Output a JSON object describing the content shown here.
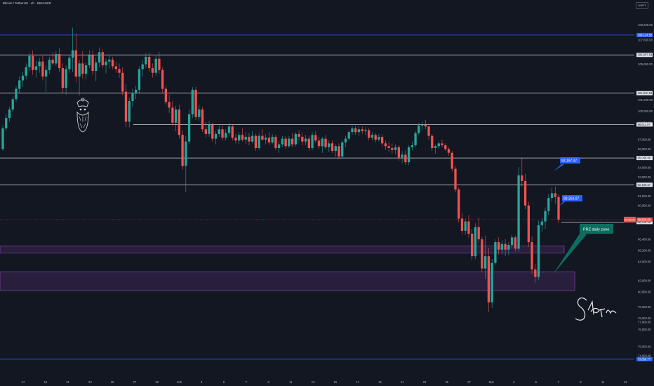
{
  "header": {
    "symbol_title": "Bitcoin / TetherUS · 4h · BINANCE",
    "currency_button": "USDT"
  },
  "colors": {
    "background": "#131722",
    "up": "#26a69a",
    "down": "#ef5350",
    "blue_line": "#2962ff",
    "white_line": "#d1d4dc",
    "zone": "#7b3fa0",
    "callout_blue": "#2962ff",
    "callout_teal": "#0c6e5f"
  },
  "chart_data": {
    "type": "candlestick",
    "title": "Bitcoin / TetherUS · 4h · BINANCE",
    "timeframe": "4h",
    "y_range": [
      72000,
      110800
    ],
    "x_tick_labels": [
      "17",
      "19",
      "21",
      "23",
      "25",
      "27",
      "29",
      "Feb",
      "3",
      "5",
      "7",
      "9",
      "11",
      "13",
      "15",
      "17",
      "19",
      "21",
      "23",
      "25",
      "27",
      "Mar",
      "3",
      "5",
      "7",
      "9",
      "11",
      "13"
    ],
    "y_tick_labels": [
      "109,200.00",
      "107,600.00",
      "105,000.00",
      "101,200.00",
      "100,000.00",
      "98,800.00",
      "97,000.00",
      "96,000.00",
      "94,000.00",
      "93,000.00",
      "91,000.00",
      "90,000.00",
      "86,400.00",
      "85,200.00",
      "84,000.00",
      "82,000.00",
      "80,800.00",
      "79,200.00",
      "78,000.00",
      "77,600.00",
      "76,800.00",
      "75,000.00",
      "74,000.00"
    ],
    "horizontal_levels": [
      {
        "price": 108124.55,
        "label": "108,124.55",
        "color": "#2962ff"
      },
      {
        "price": 106007.54,
        "label": "106,007.54",
        "color": "#d1d4dc"
      },
      {
        "price": 101940.94,
        "label": "101,940.94",
        "color": "#d1d4dc"
      },
      {
        "price": 98611.97,
        "label": "98,611.97",
        "color": "#d1d4dc"
      },
      {
        "price": 95045.9,
        "label": "95,045.90",
        "color": "#d1d4dc"
      },
      {
        "price": 92199.67,
        "label": "92,199.67",
        "color": "#d1d4dc"
      },
      {
        "price": 88236.49,
        "label": "88,236.49",
        "color": "#d1d4dc"
      },
      {
        "price": 73656.77,
        "label": "73,656.77",
        "color": "#2962ff"
      }
    ],
    "current_price": {
      "value": 88500,
      "label": "88,500.00",
      "timer": "01:23:05"
    },
    "zones": [
      {
        "from": 84950,
        "to": 85700
      },
      {
        "from": 80950,
        "to": 82950
      }
    ],
    "callouts": [
      {
        "text": "92,197.37",
        "price": 92197.37
      },
      {
        "text": "88,263.07",
        "price": 88263.07
      },
      {
        "text": "PRZ daily zone"
      }
    ],
    "ohlc": [
      [
        96000,
        98500,
        95800,
        98200
      ],
      [
        98200,
        99700,
        97900,
        99300
      ],
      [
        99300,
        100500,
        98900,
        100200
      ],
      [
        100200,
        101600,
        99900,
        101300
      ],
      [
        101300,
        102700,
        101000,
        102400
      ],
      [
        102400,
        103700,
        101900,
        103300
      ],
      [
        103300,
        104200,
        102600,
        103800
      ],
      [
        103800,
        105100,
        103400,
        104700
      ],
      [
        104700,
        106200,
        104300,
        105900
      ],
      [
        105900,
        106500,
        103900,
        104400
      ],
      [
        104400,
        105400,
        103600,
        104800
      ],
      [
        104800,
        105700,
        104100,
        105300
      ],
      [
        105300,
        105900,
        103300,
        103700
      ],
      [
        103700,
        104900,
        102100,
        104400
      ],
      [
        104400,
        105800,
        104000,
        105500
      ],
      [
        105500,
        106300,
        104900,
        105100
      ],
      [
        105100,
        106400,
        104800,
        106100
      ],
      [
        106100,
        106700,
        104200,
        104600
      ],
      [
        104600,
        105100,
        102000,
        102500
      ],
      [
        102500,
        104900,
        101800,
        104500
      ],
      [
        104500,
        106000,
        104100,
        105700
      ],
      [
        105700,
        108900,
        104200,
        106500
      ],
      [
        106500,
        108300,
        103100,
        103700
      ],
      [
        103700,
        105500,
        101700,
        105100
      ],
      [
        105100,
        106400,
        103500,
        104000
      ],
      [
        104000,
        105200,
        103400,
        104900
      ],
      [
        104900,
        106500,
        104600,
        106000
      ],
      [
        106000,
        106500,
        103900,
        104300
      ],
      [
        104300,
        105700,
        103200,
        105200
      ],
      [
        105200,
        106800,
        104700,
        106300
      ],
      [
        106300,
        106600,
        104600,
        104900
      ],
      [
        104900,
        105600,
        104000,
        105300
      ],
      [
        105300,
        106000,
        104600,
        105500
      ],
      [
        105500,
        105800,
        104500,
        104800
      ],
      [
        104800,
        105300,
        104100,
        104500
      ],
      [
        104500,
        105100,
        103600,
        104100
      ],
      [
        104100,
        104700,
        101700,
        102100
      ],
      [
        102100,
        102900,
        98300,
        98900
      ],
      [
        98900,
        101500,
        98300,
        101100
      ],
      [
        101100,
        102400,
        100500,
        101900
      ],
      [
        101900,
        102700,
        101300,
        102300
      ],
      [
        102300,
        104800,
        101900,
        104500
      ],
      [
        104500,
        105500,
        103700,
        105000
      ],
      [
        105000,
        106200,
        104600,
        105800
      ],
      [
        105800,
        106300,
        104200,
        104600
      ],
      [
        104600,
        105100,
        103600,
        104100
      ],
      [
        104100,
        105900,
        103800,
        105600
      ],
      [
        105600,
        106300,
        104000,
        104400
      ],
      [
        104400,
        104700,
        102000,
        102400
      ],
      [
        102400,
        102700,
        100700,
        101000
      ],
      [
        101000,
        101800,
        99800,
        100400
      ],
      [
        100400,
        101100,
        98500,
        98800
      ],
      [
        98800,
        100600,
        97900,
        100200
      ],
      [
        100200,
        100700,
        97100,
        97500
      ],
      [
        97500,
        98000,
        93800,
        94200
      ],
      [
        94200,
        97400,
        91400,
        96800
      ],
      [
        96800,
        100200,
        96500,
        99700
      ],
      [
        99700,
        102600,
        99300,
        102300
      ],
      [
        102300,
        102600,
        99100,
        99400
      ],
      [
        99400,
        100700,
        99000,
        100200
      ],
      [
        100200,
        100500,
        97800,
        98100
      ],
      [
        98100,
        98900,
        97200,
        97600
      ],
      [
        97600,
        99000,
        97300,
        98600
      ],
      [
        98600,
        98800,
        96800,
        97100
      ],
      [
        97100,
        97900,
        96500,
        97600
      ],
      [
        97600,
        98500,
        97300,
        98100
      ],
      [
        98100,
        98500,
        96900,
        97200
      ],
      [
        97200,
        98100,
        96900,
        97700
      ],
      [
        97700,
        98800,
        97400,
        98400
      ],
      [
        98400,
        98600,
        96900,
        97200
      ],
      [
        97200,
        97600,
        96600,
        96900
      ],
      [
        96900,
        97800,
        96500,
        97500
      ],
      [
        97500,
        98200,
        96800,
        97000
      ],
      [
        97000,
        97800,
        96500,
        97300
      ],
      [
        97300,
        97700,
        96400,
        96800
      ],
      [
        96800,
        97900,
        96600,
        97400
      ],
      [
        97400,
        97600,
        95800,
        96100
      ],
      [
        96100,
        97700,
        95900,
        97400
      ],
      [
        97400,
        98100,
        96900,
        97000
      ],
      [
        97000,
        97600,
        96500,
        97200
      ],
      [
        97200,
        97800,
        96400,
        96700
      ],
      [
        96700,
        97600,
        96500,
        97300
      ],
      [
        97300,
        97500,
        95900,
        96100
      ],
      [
        96100,
        96800,
        95600,
        96500
      ],
      [
        96500,
        97400,
        96200,
        97100
      ],
      [
        97100,
        97400,
        96000,
        96300
      ],
      [
        96300,
        97400,
        96100,
        97100
      ],
      [
        97100,
        97700,
        96200,
        96500
      ],
      [
        96500,
        97800,
        96300,
        97600
      ],
      [
        97600,
        98000,
        96900,
        97300
      ],
      [
        97300,
        97700,
        96400,
        96800
      ],
      [
        96800,
        97500,
        96400,
        97100
      ],
      [
        97100,
        97400,
        95800,
        96100
      ],
      [
        96100,
        97800,
        95900,
        97500
      ],
      [
        97500,
        97900,
        96700,
        96900
      ],
      [
        96900,
        97300,
        96000,
        96300
      ],
      [
        96300,
        97300,
        95600,
        97100
      ],
      [
        97100,
        97500,
        96000,
        96200
      ],
      [
        96200,
        96900,
        95700,
        96600
      ],
      [
        96600,
        96900,
        95600,
        95800
      ],
      [
        95800,
        96500,
        95200,
        96300
      ],
      [
        96300,
        96600,
        94900,
        95200
      ],
      [
        95200,
        96900,
        95000,
        96700
      ],
      [
        96700,
        97400,
        96200,
        97100
      ],
      [
        97100,
        98000,
        96900,
        97800
      ],
      [
        97800,
        98500,
        97500,
        98200
      ],
      [
        98200,
        98500,
        97500,
        97800
      ],
      [
        97800,
        98400,
        97400,
        98100
      ],
      [
        98100,
        98400,
        97600,
        97900
      ],
      [
        97900,
        98300,
        97500,
        98000
      ],
      [
        98000,
        98200,
        96900,
        97200
      ],
      [
        97200,
        97800,
        96900,
        97500
      ],
      [
        97500,
        97700,
        96700,
        97000
      ],
      [
        97000,
        97600,
        96800,
        97300
      ],
      [
        97300,
        97600,
        96300,
        96600
      ],
      [
        96600,
        96900,
        95900,
        96300
      ],
      [
        96300,
        96800,
        95700,
        96100
      ],
      [
        96100,
        96600,
        95500,
        95900
      ],
      [
        95900,
        96500,
        95400,
        96200
      ],
      [
        96200,
        96400,
        94700,
        95100
      ],
      [
        95100,
        95800,
        94500,
        95400
      ],
      [
        95400,
        95900,
        94300,
        94600
      ],
      [
        94600,
        96400,
        94300,
        96200
      ],
      [
        96200,
        96800,
        95900,
        96400
      ],
      [
        96400,
        97900,
        96200,
        97700
      ],
      [
        97700,
        98800,
        97500,
        98500
      ],
      [
        98500,
        98900,
        98000,
        98600
      ],
      [
        98600,
        99100,
        98100,
        98400
      ],
      [
        98400,
        98500,
        97000,
        97400
      ],
      [
        97400,
        97600,
        95800,
        96100
      ],
      [
        96100,
        96500,
        95500,
        96300
      ],
      [
        96300,
        96800,
        96000,
        96600
      ],
      [
        96600,
        97000,
        96200,
        96400
      ],
      [
        96400,
        96600,
        95800,
        96000
      ],
      [
        96000,
        96200,
        95300,
        95600
      ],
      [
        95600,
        95800,
        93600,
        93900
      ],
      [
        93900,
        94200,
        91400,
        91700
      ],
      [
        91700,
        91900,
        88200,
        88600
      ],
      [
        88600,
        89200,
        86900,
        87300
      ],
      [
        87300,
        88600,
        86900,
        88300
      ],
      [
        88300,
        89000,
        86600,
        87000
      ],
      [
        87000,
        87500,
        84200,
        84600
      ],
      [
        84600,
        88100,
        84300,
        87700
      ],
      [
        87700,
        88700,
        86000,
        86400
      ],
      [
        86400,
        86700,
        82900,
        83300
      ],
      [
        83300,
        86800,
        82200,
        84600
      ],
      [
        84600,
        85500,
        78700,
        79700
      ],
      [
        79700,
        84300,
        79100,
        83900
      ],
      [
        83900,
        86400,
        83700,
        86100
      ],
      [
        86100,
        86600,
        84800,
        85300
      ],
      [
        85300,
        86300,
        84800,
        85900
      ],
      [
        85900,
        86400,
        84600,
        85300
      ],
      [
        85300,
        86100,
        84700,
        85800
      ],
      [
        85800,
        86900,
        85400,
        86600
      ],
      [
        86600,
        86800,
        85100,
        85400
      ],
      [
        85400,
        94100,
        85100,
        93200
      ],
      [
        93200,
        95000,
        92000,
        92600
      ],
      [
        92600,
        93400,
        89600,
        90000
      ],
      [
        90000,
        90400,
        85600,
        86100
      ],
      [
        86100,
        86700,
        82700,
        83200
      ],
      [
        83200,
        83800,
        81800,
        82400
      ],
      [
        82400,
        88400,
        82100,
        87900
      ],
      [
        87900,
        88700,
        87200,
        88300
      ],
      [
        88300,
        89800,
        87500,
        89400
      ],
      [
        89400,
        91200,
        89000,
        90800
      ],
      [
        90800,
        91900,
        90400,
        91300
      ],
      [
        91300,
        92000,
        90200,
        90900
      ],
      [
        90900,
        91200,
        88100,
        88500
      ]
    ]
  }
}
